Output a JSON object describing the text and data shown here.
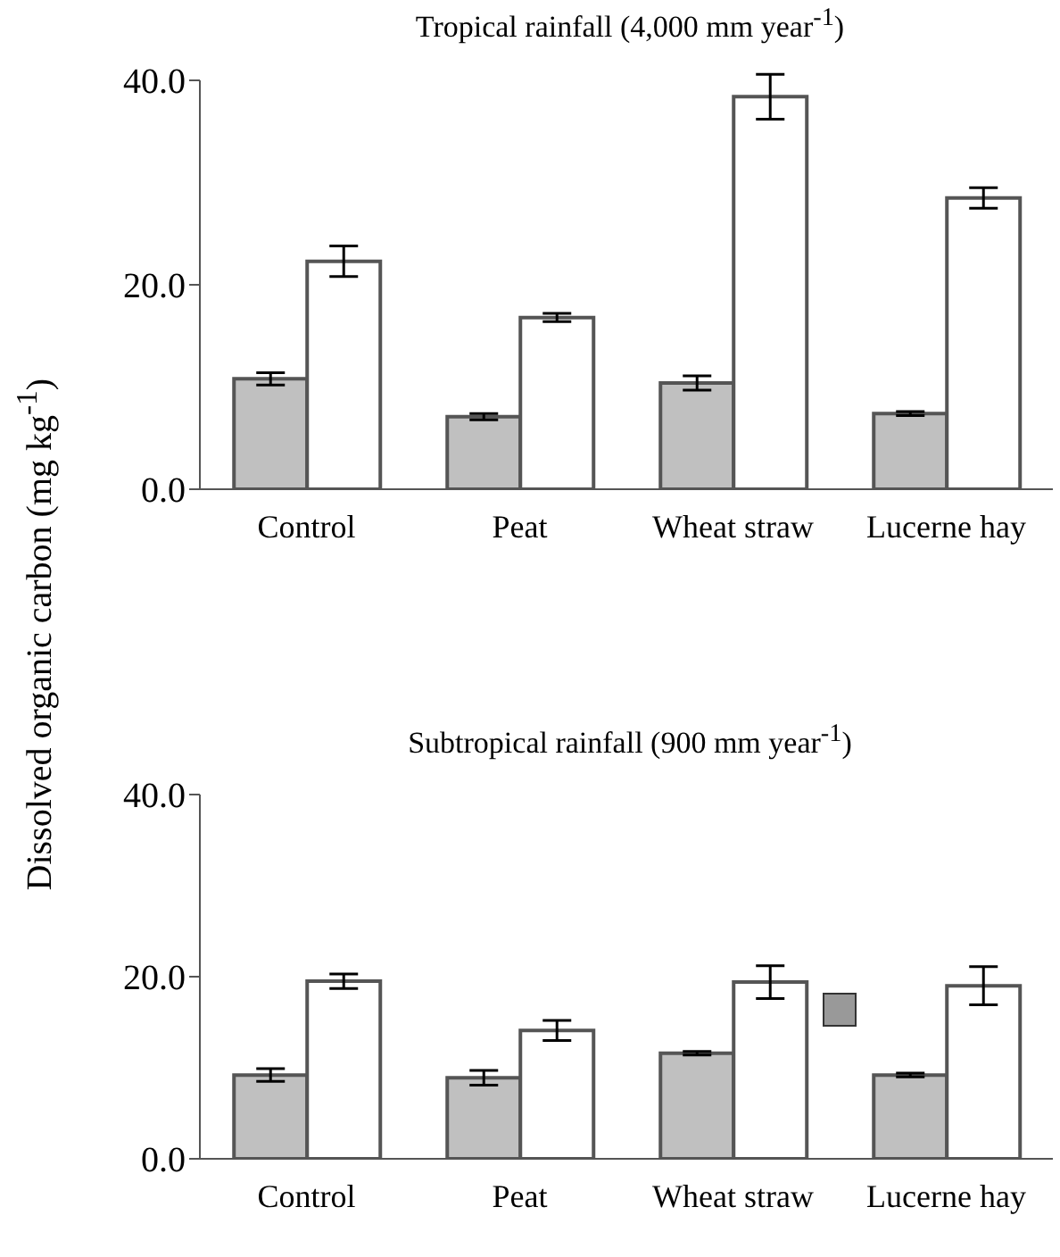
{
  "chart_data": [
    {
      "type": "bar",
      "title": "Tropical rainfall (4,000 mm year$^{-1}$)",
      "ylabel": "Dissolved organic carbon (mg kg$^{-1}$)",
      "categories": [
        "Control",
        "Peat",
        "Wheat straw",
        "Lucerne hay"
      ],
      "series": [
        {
          "color": "#c0c0c0",
          "values": [
            10.8,
            7.1,
            10.4,
            7.4
          ],
          "errors": [
            0.6,
            0.3,
            0.7,
            0.2
          ]
        },
        {
          "color": "#ffffff",
          "values": [
            22.3,
            16.8,
            38.4,
            28.5
          ],
          "errors": [
            1.5,
            0.4,
            2.2,
            1.0
          ]
        }
      ],
      "ylim": [
        0,
        40
      ],
      "yticks": [
        {
          "value": 0,
          "label": "0.0"
        },
        {
          "value": 20,
          "label": "20.0"
        },
        {
          "value": 40,
          "label": "40.0"
        }
      ],
      "grid": false,
      "legend": false
    },
    {
      "type": "bar",
      "title": "Subtropical rainfall (900 mm year$^{-1}$)",
      "categories": [
        "Control",
        "Peat",
        "Wheat straw",
        "Lucerne hay"
      ],
      "series": [
        {
          "color": "#c0c0c0",
          "values": [
            9.2,
            8.9,
            11.6,
            9.2
          ],
          "errors": [
            0.7,
            0.8,
            0.2,
            0.2
          ]
        },
        {
          "color": "#ffffff",
          "values": [
            19.5,
            14.1,
            19.4,
            19.0
          ],
          "errors": [
            0.8,
            1.1,
            1.8,
            2.1
          ]
        }
      ],
      "ylim": [
        0,
        40
      ],
      "yticks": [
        {
          "value": 0,
          "label": "0.0"
        },
        {
          "value": 20,
          "label": "20.0"
        },
        {
          "value": 40,
          "label": "40.0"
        }
      ],
      "grid": false,
      "legend": false
    }
  ]
}
